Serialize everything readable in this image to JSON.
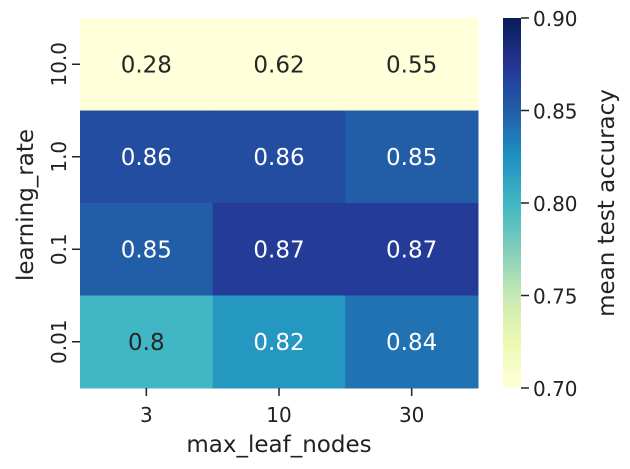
{
  "chart_data": {
    "type": "heatmap",
    "title": "",
    "xlabel": "max_leaf_nodes",
    "ylabel": "learning_rate",
    "x_categories": [
      "3",
      "10",
      "30"
    ],
    "y_categories": [
      "10.0",
      "1.0",
      "0.1",
      "0.01"
    ],
    "values": [
      [
        0.28,
        0.62,
        0.55
      ],
      [
        0.86,
        0.86,
        0.85
      ],
      [
        0.85,
        0.87,
        0.87
      ],
      [
        0.8,
        0.82,
        0.84
      ]
    ],
    "cell_labels": [
      [
        "0.28",
        "0.62",
        "0.55"
      ],
      [
        "0.86",
        "0.86",
        "0.85"
      ],
      [
        "0.85",
        "0.87",
        "0.87"
      ],
      [
        "0.8",
        "0.82",
        "0.84"
      ]
    ],
    "colormap": "YlGnBu",
    "vmin": 0.7,
    "vmax": 0.9,
    "colorbar_label": "mean test accuracy",
    "colorbar_ticks": [
      "0.70",
      "0.75",
      "0.80",
      "0.85",
      "0.90"
    ],
    "colors": {
      "annotation_light": "#ffffff",
      "annotation_dark": "#262626",
      "tick": "#222222"
    }
  }
}
